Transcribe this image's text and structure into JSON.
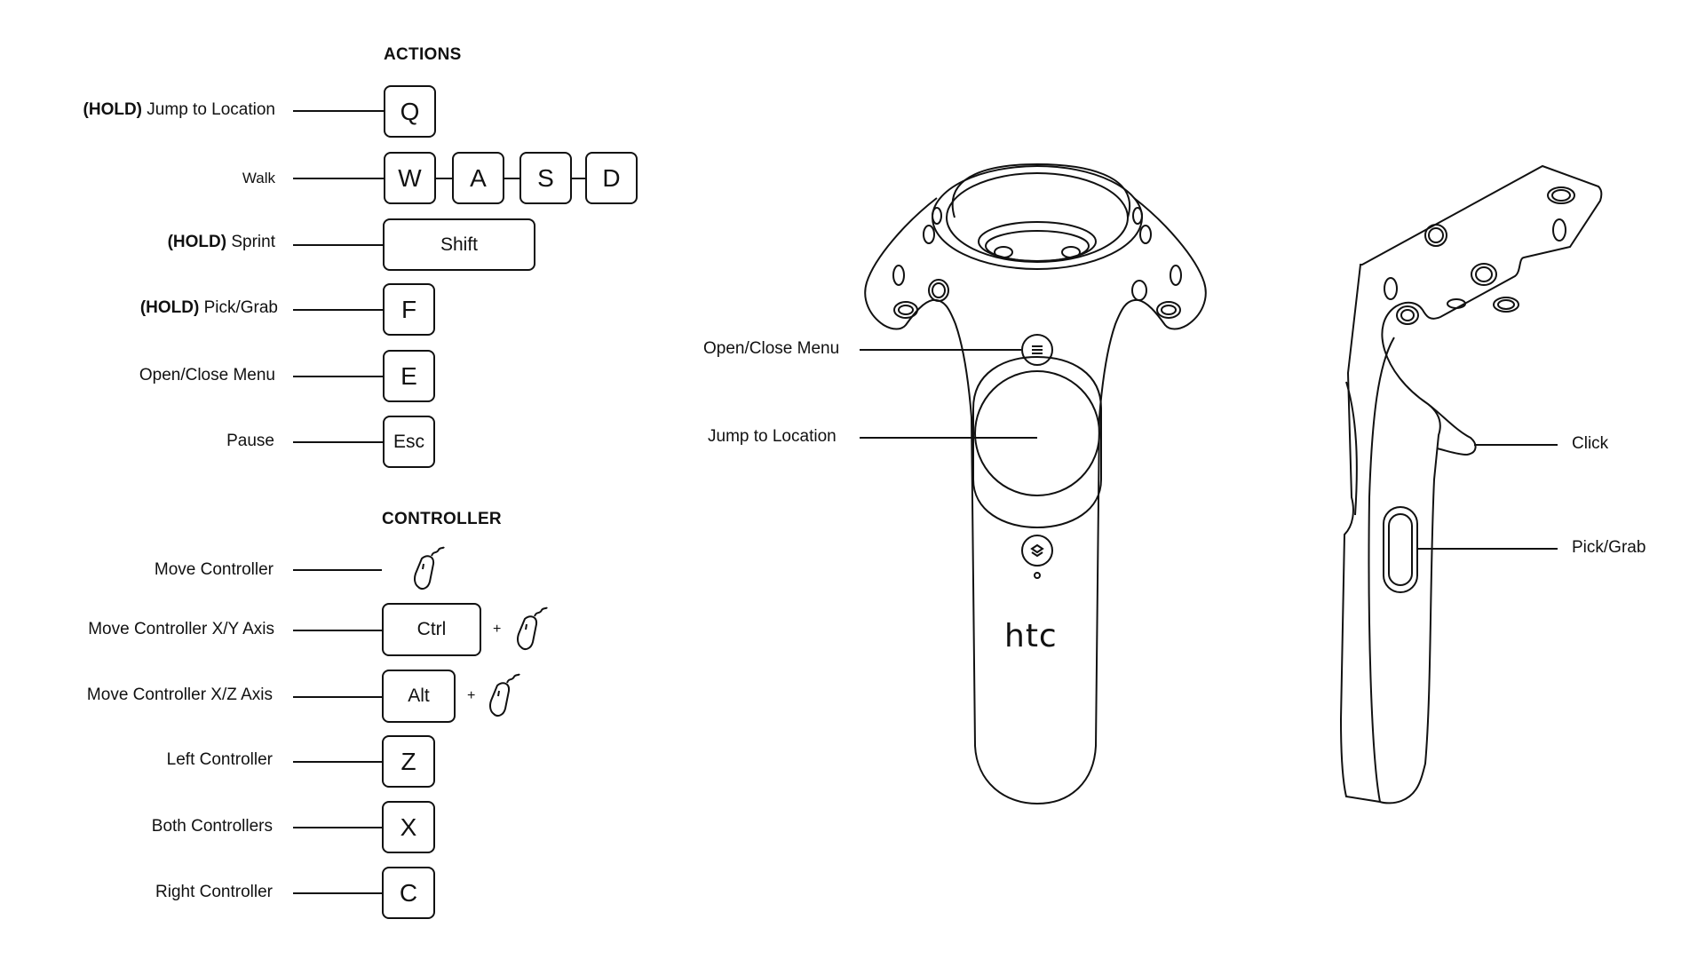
{
  "actions": {
    "heading": "ACTIONS",
    "jump": {
      "prefix": "(HOLD)",
      "label": "Jump to Location",
      "key": "Q"
    },
    "walk": {
      "label": "Walk",
      "keys": [
        "W",
        "A",
        "S",
        "D"
      ]
    },
    "sprint": {
      "prefix": "(HOLD)",
      "label": "Sprint",
      "key": "Shift"
    },
    "grab": {
      "prefix": "(HOLD)",
      "label": "Pick/Grab",
      "key": "F"
    },
    "menu": {
      "label": "Open/Close Menu",
      "key": "E"
    },
    "pause": {
      "label": "Pause",
      "key": "Esc"
    }
  },
  "controller": {
    "heading": "CONTROLLER",
    "move": {
      "label": "Move Controller",
      "icon": "mouse-icon"
    },
    "xy": {
      "label": "Move Controller X/Y Axis",
      "key": "Ctrl",
      "plus": "+"
    },
    "xz": {
      "label": "Move Controller X/Z Axis",
      "key": "Alt",
      "plus": "+"
    },
    "left": {
      "label": "Left Controller",
      "key": "Z"
    },
    "both": {
      "label": "Both Controllers",
      "key": "X"
    },
    "right": {
      "label": "Right Controller",
      "key": "C"
    }
  },
  "vive_front": {
    "menu_label": "Open/Close Menu",
    "trackpad_label": "Jump to Location",
    "brand": "htc"
  },
  "vive_side": {
    "trigger_label": "Click",
    "grip_label": "Pick/Grab"
  }
}
